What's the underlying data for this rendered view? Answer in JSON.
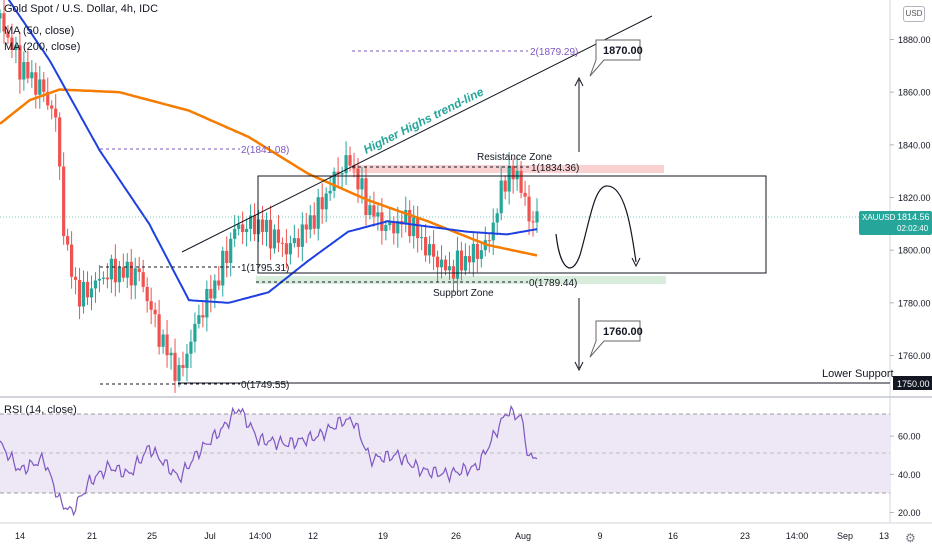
{
  "header": {
    "title": "Gold Spot / U.S. Dollar, 4h, IDC",
    "ma50": "MA (50, close)",
    "ma200": "MA (200, close)",
    "currency_button": "USD"
  },
  "rsi_label": "RSI (14, close)",
  "price_tag": {
    "symbol": "XAUUSD",
    "price": "1814.56",
    "countdown": "02:02:40"
  },
  "lower_support_tag": "1750.00",
  "annotations": {
    "trendline": "Higher Highs trend-line",
    "resistance": "Resistance Zone",
    "support": "Support Zone",
    "lower_support": "Lower Support",
    "target_up": "1870.00",
    "target_down": "1760.00",
    "fib_2_upper": "2(1879.29)",
    "fib_2_lower": "2(1841.08)",
    "fib_1_upper": "1(1834.36)",
    "fib_1_lower": "1(1795.31)",
    "fib_0_upper": "0(1789.44)",
    "fib_0_lower": "0(1749.55)"
  },
  "colors": {
    "up": "#26a69a",
    "down": "#ef5350",
    "ma50": "#1e40e0",
    "ma200": "#f57c00",
    "rsi": "#7e57c2",
    "rsi_band": "#ede7f6",
    "trend_text": "#26a69a",
    "price_tag_bg": "#26a69a",
    "resistance_zone": "#f8c6c6",
    "support_zone": "#cfe9d3"
  },
  "chart_data": {
    "type": "candlestick",
    "price_axis": {
      "min": 1745,
      "max": 1895,
      "ticks": [
        1760,
        1780,
        1800,
        1820,
        1840,
        1860,
        1880
      ]
    },
    "rsi_axis": {
      "min": 15,
      "max": 80,
      "ticks": [
        20,
        40,
        60
      ],
      "bands": [
        30,
        70
      ]
    },
    "x_ticks": [
      "14",
      "21",
      "25",
      "Jul",
      "14:00",
      "12",
      "19",
      "26",
      "Aug",
      "9",
      "16",
      "23",
      "14:00",
      "Sep",
      "13"
    ],
    "key_points": [
      {
        "t": 0,
        "price": 1888
      },
      {
        "t": 10,
        "price": 1870
      },
      {
        "t": 22,
        "price": 1860
      },
      {
        "t": 28,
        "price": 1850
      },
      {
        "t": 33,
        "price": 1800
      },
      {
        "t": 40,
        "price": 1782
      },
      {
        "t": 55,
        "price": 1792
      },
      {
        "t": 70,
        "price": 1791
      },
      {
        "t": 80,
        "price": 1768
      },
      {
        "t": 90,
        "price": 1752
      },
      {
        "t": 100,
        "price": 1775
      },
      {
        "t": 110,
        "price": 1790
      },
      {
        "t": 118,
        "price": 1808
      },
      {
        "t": 130,
        "price": 1810
      },
      {
        "t": 145,
        "price": 1800
      },
      {
        "t": 160,
        "price": 1815
      },
      {
        "t": 170,
        "price": 1830
      },
      {
        "t": 176,
        "price": 1834
      },
      {
        "t": 185,
        "price": 1816
      },
      {
        "t": 195,
        "price": 1808
      },
      {
        "t": 205,
        "price": 1812
      },
      {
        "t": 215,
        "price": 1800
      },
      {
        "t": 225,
        "price": 1792
      },
      {
        "t": 235,
        "price": 1797
      },
      {
        "t": 245,
        "price": 1802
      },
      {
        "t": 255,
        "price": 1830
      },
      {
        "t": 262,
        "price": 1826
      },
      {
        "t": 266,
        "price": 1810
      },
      {
        "t": 270,
        "price": 1814.56
      }
    ],
    "ma50_points": [
      {
        "t": 0,
        "price": 1900
      },
      {
        "t": 25,
        "price": 1872
      },
      {
        "t": 50,
        "price": 1838
      },
      {
        "t": 75,
        "price": 1810
      },
      {
        "t": 95,
        "price": 1781
      },
      {
        "t": 115,
        "price": 1780
      },
      {
        "t": 135,
        "price": 1784
      },
      {
        "t": 155,
        "price": 1796
      },
      {
        "t": 175,
        "price": 1807
      },
      {
        "t": 195,
        "price": 1811
      },
      {
        "t": 215,
        "price": 1809
      },
      {
        "t": 235,
        "price": 1807
      },
      {
        "t": 255,
        "price": 1806
      },
      {
        "t": 270,
        "price": 1808
      }
    ],
    "ma200_points": [
      {
        "t": 0,
        "price": 1848
      },
      {
        "t": 15,
        "price": 1857
      },
      {
        "t": 30,
        "price": 1861
      },
      {
        "t": 60,
        "price": 1860
      },
      {
        "t": 95,
        "price": 1853
      },
      {
        "t": 125,
        "price": 1843
      },
      {
        "t": 155,
        "price": 1829
      },
      {
        "t": 185,
        "price": 1819
      },
      {
        "t": 215,
        "price": 1811
      },
      {
        "t": 245,
        "price": 1802
      },
      {
        "t": 270,
        "price": 1798
      }
    ],
    "rsi_points": [
      {
        "t": 0,
        "value": 56
      },
      {
        "t": 10,
        "value": 42
      },
      {
        "t": 22,
        "value": 48
      },
      {
        "t": 30,
        "value": 26
      },
      {
        "t": 36,
        "value": 20
      },
      {
        "t": 45,
        "value": 36
      },
      {
        "t": 55,
        "value": 44
      },
      {
        "t": 65,
        "value": 40
      },
      {
        "t": 75,
        "value": 54
      },
      {
        "t": 90,
        "value": 38
      },
      {
        "t": 100,
        "value": 52
      },
      {
        "t": 112,
        "value": 64
      },
      {
        "t": 120,
        "value": 75
      },
      {
        "t": 130,
        "value": 58
      },
      {
        "t": 145,
        "value": 56
      },
      {
        "t": 160,
        "value": 60
      },
      {
        "t": 172,
        "value": 68
      },
      {
        "t": 178,
        "value": 68
      },
      {
        "t": 186,
        "value": 48
      },
      {
        "t": 200,
        "value": 50
      },
      {
        "t": 212,
        "value": 42
      },
      {
        "t": 225,
        "value": 40
      },
      {
        "t": 240,
        "value": 44
      },
      {
        "t": 255,
        "value": 73
      },
      {
        "t": 262,
        "value": 70
      },
      {
        "t": 266,
        "value": 48
      },
      {
        "t": 270,
        "value": 50
      }
    ]
  }
}
